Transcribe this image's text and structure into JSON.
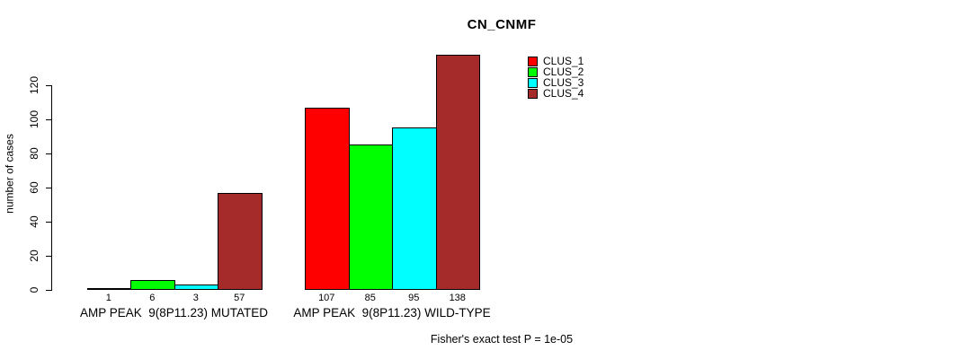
{
  "title": "CN_CNMF",
  "chart_data": {
    "type": "bar",
    "title": "CN_CNMF",
    "ylabel": "number of cases",
    "xlabel": "",
    "yticks": [
      0,
      20,
      40,
      60,
      80,
      100,
      120
    ],
    "ylim": [
      0,
      138
    ],
    "grid": false,
    "legend_position": "top-right-inside",
    "background_color": "#ffffff",
    "bar_border_color": "#000000",
    "categories": [
      "AMP PEAK  9(8P11.23) MUTATED",
      "AMP PEAK  9(8P11.23) WILD-TYPE"
    ],
    "series": [
      {
        "name": "CLUS_1",
        "color": "#FF0000",
        "values": [
          1,
          107
        ]
      },
      {
        "name": "CLUS_2",
        "color": "#00FF00",
        "values": [
          6,
          85
        ]
      },
      {
        "name": "CLUS_3",
        "color": "#00FFFF",
        "values": [
          3,
          95
        ]
      },
      {
        "name": "CLUS_4",
        "color": "#A52A2A",
        "values": [
          57,
          138
        ]
      }
    ],
    "bar_value_labels_shown": true,
    "annotation": "Fisher's exact test P = 1e-05"
  }
}
